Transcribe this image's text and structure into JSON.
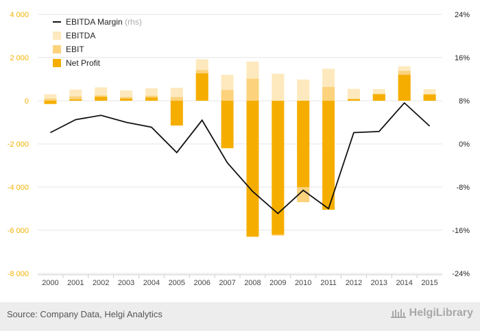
{
  "chart_data": {
    "type": "bar+line",
    "categories": [
      "2000",
      "2001",
      "2002",
      "2003",
      "2004",
      "2005",
      "2006",
      "2007",
      "2008",
      "2009",
      "2010",
      "2011",
      "2012",
      "2013",
      "2014",
      "2015"
    ],
    "series": [
      {
        "name": "EBITDA",
        "kind": "bar",
        "values": [
          300,
          520,
          620,
          480,
          580,
          600,
          1920,
          1200,
          1820,
          1250,
          980,
          1480,
          550,
          540,
          1600,
          540
        ]
      },
      {
        "name": "EBIT",
        "kind": "bar",
        "values": [
          100,
          200,
          250,
          170,
          230,
          170,
          1420,
          500,
          1020,
          -6250,
          -4700,
          640,
          90,
          320,
          1380,
          300
        ]
      },
      {
        "name": "Net Profit",
        "kind": "bar",
        "values": [
          -150,
          60,
          180,
          100,
          150,
          -1150,
          1270,
          -2200,
          -6300,
          -6200,
          -4000,
          -5050,
          70,
          300,
          1200,
          290
        ]
      },
      {
        "name": "EBITDA Margin",
        "name_suffix": "(rhs)",
        "kind": "line",
        "axis": "right",
        "values": [
          2.1,
          4.5,
          5.3,
          4.0,
          3.1,
          -1.6,
          4.4,
          -3.5,
          -8.8,
          -12.9,
          -8.6,
          -12.0,
          2.1,
          2.3,
          7.6,
          3.3
        ]
      }
    ],
    "left_axis": {
      "ticks": [
        "4 000",
        "2 000",
        "0",
        "-2 000",
        "-4 000",
        "-6 000",
        "-8 000"
      ],
      "ylim": [
        -8000,
        4000
      ]
    },
    "right_axis": {
      "ticks": [
        "24%",
        "16%",
        "8%",
        "0%",
        "-8%",
        "-16%",
        "-24%"
      ],
      "ylim": [
        -24,
        24
      ]
    },
    "grid": true,
    "legend_placement": "top-left",
    "colors": {
      "EBITDA": "#fde9bd",
      "EBIT": "#fcd27c",
      "Net Profit": "#f5ae00",
      "EBITDA Margin": "#111111",
      "left_ticks": "#f2b100"
    }
  },
  "footer": {
    "source": "Source: Company Data, Helgi Analytics",
    "logo": "HelgiLibrary"
  }
}
